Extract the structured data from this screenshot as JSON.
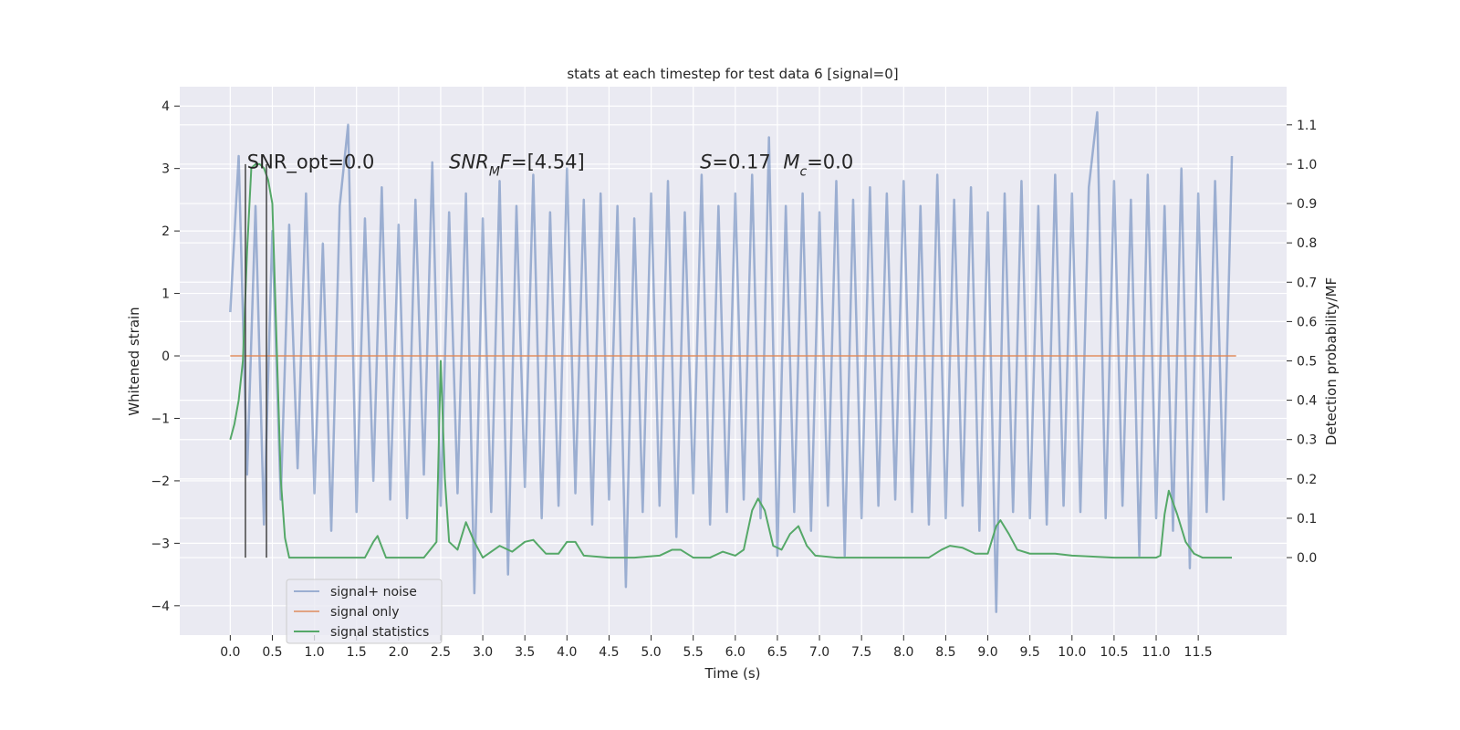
{
  "chart_data": {
    "type": "line",
    "title": "stats at each timestep for test data 6 [signal=0]",
    "xlabel": "Time (s)",
    "ylabel": "Whitened strain",
    "y2label": "Detection probability/MF",
    "xlim": [
      -0.6,
      12.55
    ],
    "ylim": [
      -4.47,
      4.31
    ],
    "y2lim": [
      -0.197,
      1.197
    ],
    "grid": true,
    "legend": "lower left",
    "xticks": [
      {
        "value": 0,
        "label": "0.0"
      },
      {
        "value": 0.5,
        "label": "0.5"
      },
      {
        "value": 1,
        "label": "1.0"
      },
      {
        "value": 1.5,
        "label": "1.5"
      },
      {
        "value": 2,
        "label": "2.0"
      },
      {
        "value": 2.5,
        "label": "2.5"
      },
      {
        "value": 3,
        "label": "3.0"
      },
      {
        "value": 3.5,
        "label": "3.5"
      },
      {
        "value": 4,
        "label": "4.0"
      },
      {
        "value": 4.5,
        "label": "4.5"
      },
      {
        "value": 5,
        "label": "5.0"
      },
      {
        "value": 5.5,
        "label": "5.5"
      },
      {
        "value": 6,
        "label": "6.0"
      },
      {
        "value": 6.5,
        "label": "6.5"
      },
      {
        "value": 7,
        "label": "7.0"
      },
      {
        "value": 7.5,
        "label": "7.5"
      },
      {
        "value": 8,
        "label": "8.0"
      },
      {
        "value": 8.5,
        "label": "8.5"
      },
      {
        "value": 9,
        "label": "9.0"
      },
      {
        "value": 9.5,
        "label": "9.5"
      },
      {
        "value": 10,
        "label": "10.0"
      },
      {
        "value": 10.5,
        "label": "10.5"
      },
      {
        "value": 11,
        "label": "11.0"
      },
      {
        "value": 11.5,
        "label": "11.5"
      }
    ],
    "yticks": [
      {
        "value": -4,
        "label": "−4"
      },
      {
        "value": -3,
        "label": "−3"
      },
      {
        "value": -2,
        "label": "−2"
      },
      {
        "value": -1,
        "label": "−1"
      },
      0,
      1,
      2,
      3,
      4
    ],
    "y2ticks": [
      {
        "value": 0,
        "label": "0.0"
      },
      {
        "value": 0.1,
        "label": "0.1"
      },
      {
        "value": 0.2,
        "label": "0.2"
      },
      {
        "value": 0.3,
        "label": "0.3"
      },
      {
        "value": 0.4,
        "label": "0.4"
      },
      {
        "value": 0.5,
        "label": "0.5"
      },
      {
        "value": 0.6,
        "label": "0.6"
      },
      {
        "value": 0.7,
        "label": "0.7"
      },
      {
        "value": 0.8,
        "label": "0.8"
      },
      {
        "value": 0.9,
        "label": "0.9"
      },
      {
        "value": 1,
        "label": "1.0"
      },
      {
        "value": 1.1,
        "label": "1.1"
      }
    ],
    "vlines": {
      "color": "#444444",
      "x": [
        0.18,
        0.43
      ],
      "y2": [
        0,
        1
      ]
    },
    "series": [
      {
        "name": "signal+ noise",
        "color": "#4c72b0",
        "opacity": 0.5,
        "x": [
          0,
          0.1,
          0.2,
          0.3,
          0.4,
          0.5,
          0.6,
          0.7,
          0.8,
          0.9,
          1,
          1.1,
          1.2,
          1.3,
          1.4,
          1.5,
          1.6,
          1.7,
          1.8,
          1.9,
          2,
          2.1,
          2.2,
          2.3,
          2.4,
          2.5,
          2.6,
          2.7,
          2.8,
          2.9,
          3,
          3.1,
          3.2,
          3.3,
          3.4,
          3.5,
          3.6,
          3.7,
          3.8,
          3.9,
          4,
          4.1,
          4.2,
          4.3,
          4.4,
          4.5,
          4.6,
          4.7,
          4.8,
          4.9,
          5,
          5.1,
          5.2,
          5.3,
          5.4,
          5.5,
          5.6,
          5.7,
          5.8,
          5.9,
          6,
          6.1,
          6.2,
          6.3,
          6.4,
          6.5,
          6.6,
          6.7,
          6.8,
          6.9,
          7,
          7.1,
          7.2,
          7.3,
          7.4,
          7.5,
          7.6,
          7.7,
          7.8,
          7.9,
          8,
          8.1,
          8.2,
          8.3,
          8.4,
          8.5,
          8.6,
          8.7,
          8.8,
          8.9,
          9,
          9.1,
          9.2,
          9.3,
          9.4,
          9.5,
          9.6,
          9.7,
          9.8,
          9.9,
          10,
          10.1,
          10.2,
          10.3,
          10.4,
          10.5,
          10.6,
          10.7,
          10.8,
          10.9,
          11,
          11.1,
          11.2,
          11.3,
          11.4,
          11.5,
          11.6,
          11.7,
          11.8,
          11.9
        ],
        "values": [
          0.7,
          3.2,
          -1.9,
          2.4,
          -2.7,
          2.0,
          -2.3,
          2.1,
          -1.8,
          2.6,
          -2.2,
          1.8,
          -2.8,
          2.4,
          3.7,
          -2.5,
          2.2,
          -2.0,
          2.7,
          -2.3,
          2.1,
          -2.6,
          2.5,
          -1.9,
          3.1,
          -2.4,
          2.3,
          -2.2,
          2.6,
          -3.8,
          2.2,
          -2.5,
          2.8,
          -3.5,
          2.4,
          -2.1,
          2.9,
          -2.6,
          2.3,
          -2.4,
          3.0,
          -2.2,
          2.5,
          -2.7,
          2.6,
          -2.3,
          2.4,
          -3.7,
          2.2,
          -2.5,
          2.6,
          -2.4,
          2.8,
          -2.9,
          2.3,
          -2.2,
          2.9,
          -2.7,
          2.4,
          -2.5,
          2.6,
          -2.3,
          2.9,
          -2.6,
          3.5,
          -3.2,
          2.4,
          -2.5,
          2.6,
          -2.8,
          2.3,
          -2.4,
          2.8,
          -3.2,
          2.5,
          -2.6,
          2.7,
          -2.4,
          2.6,
          -2.3,
          2.8,
          -2.5,
          2.4,
          -2.7,
          2.9,
          -2.6,
          2.5,
          -2.4,
          2.7,
          -2.8,
          2.3,
          -4.1,
          2.6,
          -2.5,
          2.8,
          -2.6,
          2.4,
          -2.7,
          2.9,
          -2.4,
          2.6,
          -2.5,
          2.7,
          3.9,
          -2.6,
          2.8,
          -2.4,
          2.5,
          -3.2,
          2.9,
          -2.6,
          2.4,
          -2.8,
          3.0,
          -3.4,
          2.6,
          -2.5,
          2.8,
          -2.3,
          3.2
        ]
      },
      {
        "name": "signal only",
        "color": "#dd8452",
        "opacity": 0.7,
        "x": [
          0,
          11.95
        ],
        "values": [
          0,
          0
        ]
      },
      {
        "name": "signal statistics",
        "color": "#55a868",
        "opacity": 1,
        "axis": "y2",
        "x": [
          0,
          0.05,
          0.1,
          0.15,
          0.2,
          0.25,
          0.3,
          0.35,
          0.4,
          0.45,
          0.5,
          0.55,
          0.6,
          0.65,
          0.7,
          1,
          1.3,
          1.6,
          1.7,
          1.75,
          1.85,
          2,
          2.3,
          2.45,
          2.5,
          2.55,
          2.6,
          2.7,
          2.8,
          2.9,
          3,
          3.2,
          3.35,
          3.5,
          3.6,
          3.75,
          3.9,
          4,
          4.1,
          4.2,
          4.5,
          4.8,
          5.1,
          5.25,
          5.35,
          5.5,
          5.7,
          5.85,
          6,
          6.1,
          6.2,
          6.27,
          6.35,
          6.45,
          6.55,
          6.65,
          6.75,
          6.85,
          6.95,
          7.2,
          7.5,
          7.8,
          8,
          8.3,
          8.45,
          8.55,
          8.7,
          8.85,
          9,
          9.1,
          9.15,
          9.25,
          9.35,
          9.5,
          9.8,
          10,
          10.5,
          11,
          11.05,
          11.1,
          11.15,
          11.25,
          11.35,
          11.45,
          11.55,
          11.9
        ],
        "values": [
          0.3,
          0.34,
          0.4,
          0.5,
          0.78,
          0.99,
          1.0,
          1.0,
          0.99,
          0.96,
          0.9,
          0.55,
          0.2,
          0.05,
          0.0,
          0.0,
          0.0,
          0.0,
          0.04,
          0.055,
          0.0,
          0.0,
          0.0,
          0.04,
          0.5,
          0.2,
          0.04,
          0.02,
          0.09,
          0.04,
          0.0,
          0.03,
          0.015,
          0.04,
          0.045,
          0.01,
          0.01,
          0.04,
          0.04,
          0.005,
          0.0,
          0.0,
          0.005,
          0.02,
          0.02,
          0.0,
          0.0,
          0.015,
          0.005,
          0.02,
          0.12,
          0.15,
          0.12,
          0.03,
          0.02,
          0.06,
          0.08,
          0.03,
          0.005,
          0.0,
          0.0,
          0.0,
          0.0,
          0.0,
          0.02,
          0.03,
          0.025,
          0.01,
          0.01,
          0.08,
          0.095,
          0.06,
          0.02,
          0.01,
          0.01,
          0.005,
          0.0,
          0.0,
          0.005,
          0.11,
          0.17,
          0.11,
          0.04,
          0.01,
          0.0,
          0.0
        ]
      }
    ],
    "annotations": [
      {
        "x": 0.2,
        "y": 3.0,
        "segments": [
          {
            "text": "SNR_opt=0.0"
          }
        ]
      },
      {
        "x": 2.6,
        "y": 3.0,
        "segments": [
          {
            "text": "SNR",
            "italic": true
          },
          {
            "text": "M",
            "italic": true,
            "sub": true
          },
          {
            "text": "F",
            "italic": true
          },
          {
            "text": "=[4.54]"
          }
        ]
      },
      {
        "x": 5.58,
        "y": 3.0,
        "segments": [
          {
            "text": "S",
            "italic": true
          },
          {
            "text": "=0.17"
          }
        ]
      },
      {
        "x": 6.57,
        "y": 3.0,
        "segments": [
          {
            "text": "M",
            "italic": true
          },
          {
            "text": "c",
            "italic": true,
            "sub": true
          },
          {
            "text": "=0.0"
          }
        ]
      }
    ]
  }
}
